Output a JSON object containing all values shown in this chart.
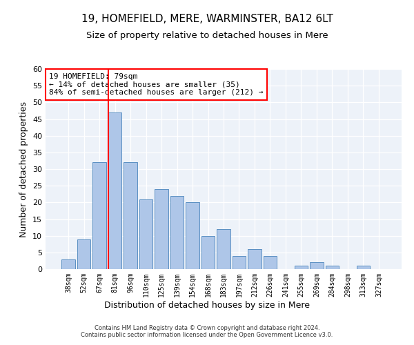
{
  "title": "19, HOMEFIELD, MERE, WARMINSTER, BA12 6LT",
  "subtitle": "Size of property relative to detached houses in Mere",
  "xlabel": "Distribution of detached houses by size in Mere",
  "ylabel": "Number of detached properties",
  "categories": [
    "38sqm",
    "52sqm",
    "67sqm",
    "81sqm",
    "96sqm",
    "110sqm",
    "125sqm",
    "139sqm",
    "154sqm",
    "168sqm",
    "183sqm",
    "197sqm",
    "212sqm",
    "226sqm",
    "241sqm",
    "255sqm",
    "269sqm",
    "284sqm",
    "298sqm",
    "313sqm",
    "327sqm"
  ],
  "values": [
    3,
    9,
    32,
    47,
    32,
    21,
    24,
    22,
    20,
    10,
    12,
    4,
    6,
    4,
    0,
    1,
    2,
    1,
    0,
    1,
    0
  ],
  "bar_color": "#aec6e8",
  "bar_edge_color": "#5a8fc2",
  "red_line_bar_index": 3,
  "annotation_text": "19 HOMEFIELD: 79sqm\n← 14% of detached houses are smaller (35)\n84% of semi-detached houses are larger (212) →",
  "annotation_box_color": "white",
  "annotation_box_edge": "red",
  "ylim": [
    0,
    60
  ],
  "yticks": [
    0,
    5,
    10,
    15,
    20,
    25,
    30,
    35,
    40,
    45,
    50,
    55,
    60
  ],
  "background_color": "#edf2f9",
  "footer_text": "Contains HM Land Registry data © Crown copyright and database right 2024.\nContains public sector information licensed under the Open Government Licence v3.0.",
  "title_fontsize": 11,
  "subtitle_fontsize": 9.5,
  "xlabel_fontsize": 9,
  "ylabel_fontsize": 9,
  "annotation_fontsize": 8,
  "footer_fontsize": 6
}
